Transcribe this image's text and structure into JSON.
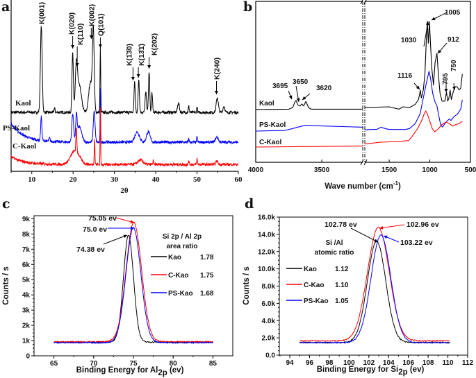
{
  "panels": {
    "a": "a",
    "b": "b",
    "c": "c",
    "d": "d"
  },
  "chart_data": [
    {
      "panel": "a",
      "type": "line",
      "title": "",
      "xlabel": "2θ",
      "ylabel": "",
      "xlim": [
        5,
        60
      ],
      "xticks": [
        "10",
        "20",
        "30",
        "40",
        "50",
        "60"
      ],
      "ylim": [
        0,
        100
      ],
      "y_units": "arbitrary intensity, offset traces",
      "series": [
        {
          "name": "Kaol",
          "color": "#000000",
          "baseline": 34.4,
          "low_angle_rise": 0,
          "peaks": [
            [
              12.3,
              85,
              0.5
            ],
            [
              15.5,
              37,
              0.3
            ],
            [
              19.9,
              69.6,
              0.4
            ],
            [
              20.8,
              59.5,
              0.6
            ],
            [
              21.5,
              50,
              1.2
            ],
            [
              24.9,
              80.6,
              0.5
            ],
            [
              24.2,
              52,
              1.0
            ],
            [
              26.6,
              71.7,
              0.2
            ],
            [
              34.9,
              52,
              0.35
            ],
            [
              35.9,
              54,
              0.35
            ],
            [
              37.6,
              46,
              0.4
            ],
            [
              38.4,
              58,
              0.35
            ],
            [
              39.1,
              46,
              0.3
            ],
            [
              45.5,
              40,
              0.5
            ],
            [
              48,
              38,
              0.25
            ],
            [
              50,
              38,
              0.2
            ],
            [
              54.9,
              43,
              0.6
            ],
            [
              56.5,
              38,
              0.5
            ]
          ]
        },
        {
          "name": "PS-Kaol",
          "color": "#0000ff",
          "baseline": 17,
          "low_angle_rise": 11,
          "peaks": [
            [
              12.3,
              31,
              0.35
            ],
            [
              14.3,
              19,
              0.3
            ],
            [
              19.9,
              33.6,
              0.5
            ],
            [
              20.8,
              30,
              0.4
            ],
            [
              21.5,
              26,
              1.3
            ],
            [
              25.1,
              35,
              0.5
            ],
            [
              26.6,
              48,
              0.15
            ],
            [
              35.5,
              23,
              1.3
            ],
            [
              38.2,
              23,
              1.0
            ],
            [
              48,
              19,
              0.2
            ],
            [
              50,
              20,
              0.2
            ],
            [
              54.8,
              20,
              0.8
            ]
          ]
        },
        {
          "name": "C-Kaol",
          "color": "#ff0000",
          "baseline": 4,
          "low_angle_rise": 4.5,
          "peaks": [
            [
              20.5,
              12,
              2.5
            ],
            [
              20.8,
              18,
              0.25
            ],
            [
              25.2,
              19,
              0.2
            ],
            [
              26.6,
              38,
              0.15
            ],
            [
              36.3,
              6.5,
              1.5
            ],
            [
              39.4,
              7,
              0.15
            ],
            [
              48,
              6.5,
              0.2
            ],
            [
              50,
              7.5,
              0.2
            ],
            [
              54.8,
              6,
              0.6
            ]
          ]
        }
      ],
      "annotations": [
        {
          "label": "K(001)",
          "x": 12.3
        },
        {
          "label": "K(020)",
          "x": 19.9
        },
        {
          "label": "K(110)",
          "x": 21.0
        },
        {
          "label": "K(002)",
          "x": 24.4
        },
        {
          "label": "Q(101)",
          "x": 26.6
        },
        {
          "label": "K(1̄3̄0)",
          "x": 34.5
        },
        {
          "label": "K(13̄1̄)",
          "x": 35.8
        },
        {
          "label": "K(202)",
          "x": 38.4
        },
        {
          "label": "K(240)",
          "x": 54.7
        }
      ]
    },
    {
      "panel": "b",
      "type": "line",
      "title": "",
      "xlabel": "Wave number (cm",
      "xlabel_sup": "-1",
      "xlabel_end": ")",
      "ylabel": "",
      "x_broken_axis": true,
      "xlim_left": [
        4000,
        3190
      ],
      "xlim_right": [
        1800,
        500
      ],
      "xticks": [
        "4000",
        "3500",
        "1500",
        "1000",
        "500"
      ],
      "ylim": [
        0,
        100
      ],
      "series": [
        {
          "name": "Kaol",
          "color": "#000000",
          "left": [
            [
              4000,
              32.8
            ],
            [
              3750,
              33
            ],
            [
              3720,
              34
            ],
            [
              3700,
              38
            ],
            [
              3695,
              38.4
            ],
            [
              3680,
              35.5
            ],
            [
              3665,
              35
            ],
            [
              3650,
              36.2
            ],
            [
              3637,
              35
            ],
            [
              3620,
              37.9
            ],
            [
              3600,
              34
            ],
            [
              3580,
              33
            ],
            [
              3190,
              33
            ]
          ],
          "right": [
            [
              1800,
              34
            ],
            [
              1500,
              34.5
            ],
            [
              1420,
              33.5
            ],
            [
              1380,
              33
            ],
            [
              1330,
              34.5
            ],
            [
              1250,
              34
            ],
            [
              1180,
              36
            ],
            [
              1140,
              39
            ],
            [
              1116,
              44.8
            ],
            [
              1105,
              40
            ],
            [
              1080,
              45
            ],
            [
              1060,
              55
            ],
            [
              1040,
              80
            ],
            [
              1030,
              87.5
            ],
            [
              1018,
              74
            ],
            [
              1005,
              87.5
            ],
            [
              990,
              72
            ],
            [
              975,
              58
            ],
            [
              955,
              48
            ],
            [
              935,
              62
            ],
            [
              912,
              67.7
            ],
            [
              895,
              55
            ],
            [
              875,
              43
            ],
            [
              850,
              38
            ],
            [
              815,
              38
            ],
            [
              795,
              43.5
            ],
            [
              780,
              38
            ],
            [
              765,
              40
            ],
            [
              750,
              44.8
            ],
            [
              735,
              39
            ],
            [
              710,
              44
            ],
            [
              690,
              47
            ],
            [
              665,
              47
            ],
            [
              640,
              45
            ],
            [
              620,
              46
            ],
            [
              600,
              54.7
            ]
          ]
        },
        {
          "name": "PS-Kaol",
          "color": "#0000ff",
          "left": [
            [
              4000,
              19.4
            ],
            [
              3780,
              19.8
            ],
            [
              3720,
              21
            ],
            [
              3650,
              22.5
            ],
            [
              3620,
              23
            ],
            [
              3500,
              22.6
            ],
            [
              3190,
              21.8
            ]
          ],
          "right": [
            [
              1800,
              20.2
            ],
            [
              1650,
              20.5
            ],
            [
              1600,
              21.8
            ],
            [
              1550,
              21
            ],
            [
              1500,
              20.4
            ],
            [
              1300,
              20.4
            ],
            [
              1250,
              21
            ],
            [
              1180,
              24
            ],
            [
              1120,
              30
            ],
            [
              1080,
              40
            ],
            [
              1040,
              50
            ],
            [
              1010,
              56.5
            ],
            [
              990,
              52
            ],
            [
              965,
              43
            ],
            [
              940,
              38
            ],
            [
              912,
              35
            ],
            [
              890,
              29
            ],
            [
              865,
              23
            ],
            [
              845,
              22
            ],
            [
              800,
              25
            ],
            [
              760,
              27
            ],
            [
              740,
              26
            ],
            [
              700,
              28.5
            ],
            [
              660,
              30
            ],
            [
              620,
              33
            ],
            [
              600,
              38.8
            ]
          ]
        },
        {
          "name": "C-Kaol",
          "color": "#ff0000",
          "left": [
            [
              4000,
              9.5
            ],
            [
              3190,
              10.1
            ]
          ],
          "right": [
            [
              1800,
              11.4
            ],
            [
              1600,
              12.5
            ],
            [
              1400,
              12.9
            ],
            [
              1260,
              13.5
            ],
            [
              1220,
              16
            ],
            [
              1150,
              21
            ],
            [
              1100,
              26
            ],
            [
              1070,
              30
            ],
            [
              1050,
              31.9
            ],
            [
              1030,
              30
            ],
            [
              1000,
              25.5
            ],
            [
              970,
              21
            ],
            [
              940,
              19
            ],
            [
              900,
              20.5
            ],
            [
              850,
              23.5
            ],
            [
              800,
              25
            ],
            [
              760,
              24
            ],
            [
              720,
              22.5
            ],
            [
              680,
              23.5
            ],
            [
              640,
              24
            ],
            [
              600,
              25.4
            ]
          ]
        }
      ],
      "annotations": [
        "3695",
        "3650",
        "3620",
        "1116",
        "1030",
        "1005",
        "912",
        "795",
        "750"
      ]
    },
    {
      "panel": "c",
      "type": "line",
      "title": "",
      "xlabel": "Binding Energy for Al",
      "xlabel_sub": "2p",
      "xlabel_end": " (ev)",
      "ylabel": "Counts / s",
      "xlim": [
        62.5,
        87.5
      ],
      "ylim": [
        0,
        9200
      ],
      "xticks": [
        65,
        70,
        75,
        80,
        85
      ],
      "xtick_labels": [
        "65",
        "70",
        "75",
        "80",
        "85"
      ],
      "yticks": [
        0,
        1000,
        2000,
        3000,
        4000,
        5000,
        6000,
        7000,
        8000,
        9000
      ],
      "ytick_labels": [
        "0",
        "1k",
        "2k",
        "3k",
        "4k",
        "5k",
        "6k",
        "7k",
        "8k",
        "9k"
      ],
      "x_range_data": [
        65,
        85
      ],
      "legend_title": [
        "Si 2p / Al 2p",
        "area ratio"
      ],
      "series": [
        {
          "name": "Kao",
          "value": "1.78",
          "color": "#000000",
          "peak_ev": 74.38,
          "peak_counts": 7900,
          "fwhm": 1.5,
          "baseline": 900
        },
        {
          "name": "C-Kao",
          "value": "1.75",
          "color": "#ff0000",
          "peak_ev": 75.05,
          "peak_counts": 8750,
          "fwhm": 2.3,
          "baseline": 920
        },
        {
          "name": "PS-Kao",
          "value": "1.68",
          "color": "#0000ff",
          "peak_ev": 75.0,
          "peak_counts": 8400,
          "fwhm": 2.2,
          "baseline": 860
        }
      ],
      "annotations": [
        "75.05 ev",
        "75.0 ev",
        "74.38 ev"
      ]
    },
    {
      "panel": "d",
      "type": "line",
      "title": "",
      "xlabel": "Binding Energy for Si",
      "xlabel_sub": "2p",
      "xlabel_end": " (ev)",
      "ylabel": "Counts / s",
      "xlim": [
        92.94,
        112
      ],
      "ylim": [
        0,
        16000
      ],
      "xticks": [
        94,
        96,
        98,
        100,
        102,
        104,
        106,
        108,
        110,
        112
      ],
      "xtick_labels": [
        "94",
        "96",
        "98",
        "100",
        "102",
        "104",
        "106",
        "108",
        "110",
        "112"
      ],
      "yticks": [
        0,
        2000,
        4000,
        6000,
        8000,
        10000,
        12000,
        14000,
        16000
      ],
      "ytick_labels": [
        "0.0",
        "2.0k",
        "4.0k",
        "6.0k",
        "8.0k",
        "10.0k",
        "12.0k",
        "14.0k",
        "16.0k"
      ],
      "x_range_data": [
        95,
        110.2
      ],
      "legend_title": [
        "Si /Al",
        "atomic ratio"
      ],
      "series": [
        {
          "name": "Kao",
          "value": "1.12",
          "color": "#000000",
          "peak_ev": 102.78,
          "peak_counts": 13200,
          "fwhm": 2.2,
          "baseline": 1450
        },
        {
          "name": "C-Kao",
          "value": "1.10",
          "color": "#ff0000",
          "peak_ev": 102.96,
          "peak_counts": 14800,
          "fwhm": 2.6,
          "baseline": 1650
        },
        {
          "name": "PS-Kao",
          "value": "1.05",
          "color": "#0000ff",
          "peak_ev": 103.22,
          "peak_counts": 13900,
          "fwhm": 2.35,
          "baseline": 1450
        }
      ],
      "annotations": [
        "102.78 ev",
        "102.96 ev",
        "103.22 ev"
      ]
    }
  ]
}
